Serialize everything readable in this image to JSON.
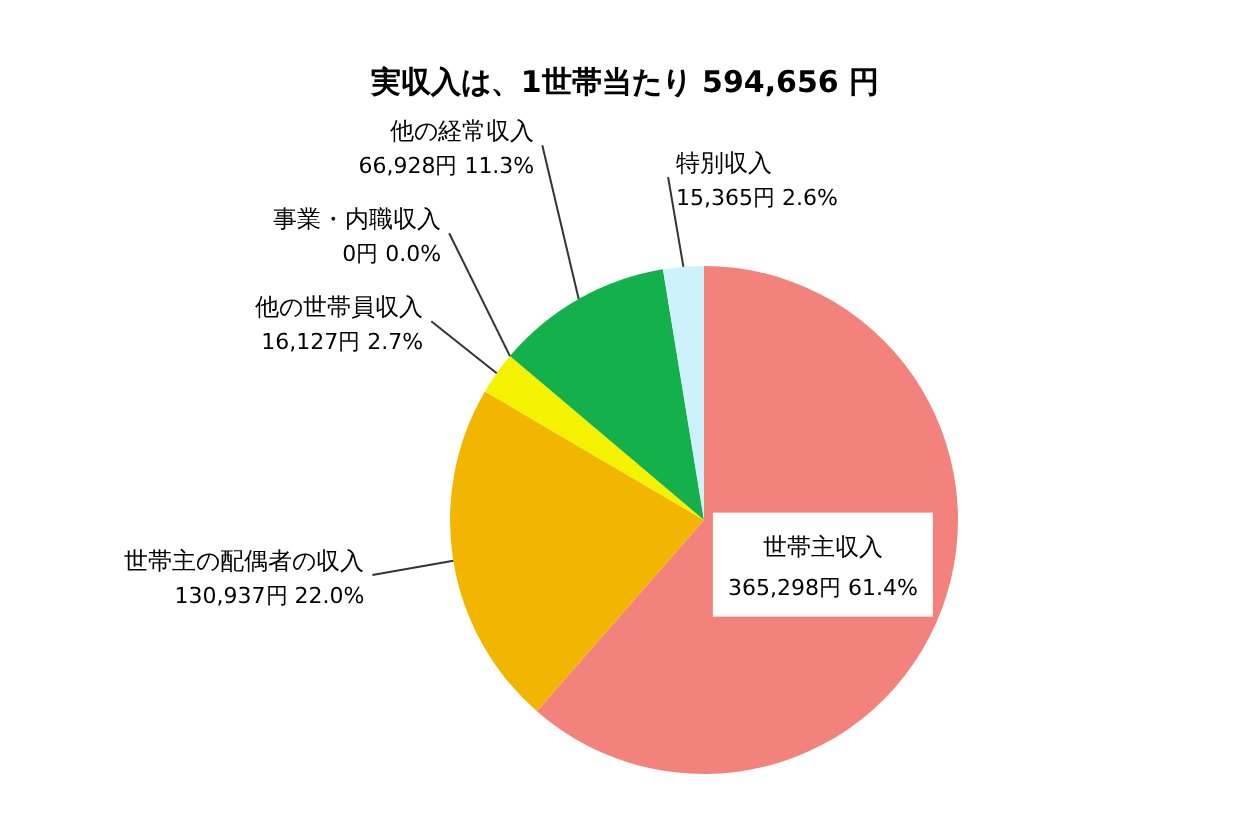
{
  "chart_data": {
    "type": "pie",
    "title": "実収入は、1世帯当たり 594,656 円",
    "categories": [
      "世帯主収入",
      "世帯主の配偶者の収入",
      "他の世帯員収入",
      "事業・内職収入",
      "他の経常収入",
      "特別収入"
    ],
    "values": [
      365298,
      130937,
      16127,
      0,
      66928,
      15365
    ],
    "value_labels": [
      "365,298円 61.4%",
      "130,937円 22.0%",
      "16,127円 2.7%",
      "0円 0.0%",
      "66,928円 11.3%",
      "15,365円 2.6%"
    ],
    "colors": [
      "#f4827c",
      "#f2b600",
      "#f5f200",
      "#9bbb59",
      "#14b04c",
      "#cdf2fb"
    ]
  }
}
